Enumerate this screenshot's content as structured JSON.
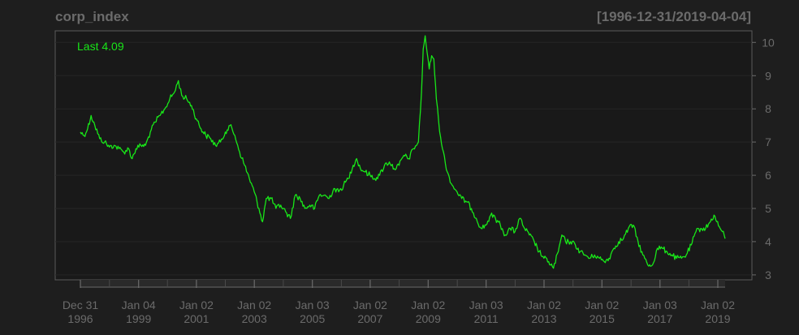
{
  "title": "corp_index",
  "date_range": "[1996-12-31/2019-04-04]",
  "last_label": "Last 4.09",
  "colors": {
    "background": "#1e1e1e",
    "panel": "#191919",
    "grid": "#262626",
    "axis": "#6b6b6b",
    "series": "#19e619"
  },
  "chart_data": {
    "type": "line",
    "title": "corp_index",
    "subtitle": "[1996-12-31/2019-04-04]",
    "xlabel": "",
    "ylabel": "",
    "xlim": [
      "1996-12-31",
      "2019-04-04"
    ],
    "ylim": [
      2.85,
      10.35
    ],
    "grid": true,
    "y_axis_side": "right",
    "y_ticks": [
      3,
      4,
      5,
      6,
      7,
      8,
      9,
      10
    ],
    "x_ticks": [
      {
        "date": "1996-12-31",
        "label": [
          "Dec 31",
          "1996"
        ]
      },
      {
        "date": "1999-01-04",
        "label": [
          "Jan 04",
          "1999"
        ]
      },
      {
        "date": "2001-01-02",
        "label": [
          "Jan 02",
          "2001"
        ]
      },
      {
        "date": "2003-01-02",
        "label": [
          "Jan 02",
          "2003"
        ]
      },
      {
        "date": "2005-01-03",
        "label": [
          "Jan 03",
          "2005"
        ]
      },
      {
        "date": "2007-01-02",
        "label": [
          "Jan 02",
          "2007"
        ]
      },
      {
        "date": "2009-01-02",
        "label": [
          "Jan 02",
          "2009"
        ]
      },
      {
        "date": "2011-01-03",
        "label": [
          "Jan 03",
          "2011"
        ]
      },
      {
        "date": "2013-01-02",
        "label": [
          "Jan 02",
          "2013"
        ]
      },
      {
        "date": "2015-01-02",
        "label": [
          "Jan 02",
          "2015"
        ]
      },
      {
        "date": "2017-01-03",
        "label": [
          "Jan 03",
          "2017"
        ]
      },
      {
        "date": "2019-01-02",
        "label": [
          "Jan 02",
          "2019"
        ]
      }
    ],
    "minor_ticks": [
      "1998-01-02",
      "2000-01-03",
      "2002-01-02",
      "2004-01-02",
      "2006-01-03",
      "2008-01-02",
      "2010-01-04",
      "2012-01-03",
      "2014-01-02",
      "2016-01-04",
      "2018-01-02"
    ],
    "series": [
      {
        "last": 4.09,
        "points": [
          [
            "1996-12-31",
            7.3
          ],
          [
            "1997-02-15",
            7.2
          ],
          [
            "1997-04-01",
            7.4
          ],
          [
            "1997-05-15",
            7.8
          ],
          [
            "1997-07-01",
            7.5
          ],
          [
            "1997-09-01",
            7.1
          ],
          [
            "1997-11-01",
            7.0
          ],
          [
            "1998-01-01",
            6.85
          ],
          [
            "1998-03-01",
            6.9
          ],
          [
            "1998-05-01",
            6.8
          ],
          [
            "1998-07-01",
            6.7
          ],
          [
            "1998-09-01",
            6.8
          ],
          [
            "1998-10-15",
            6.5
          ],
          [
            "1998-12-01",
            6.8
          ],
          [
            "1999-02-01",
            6.9
          ],
          [
            "1999-04-01",
            6.9
          ],
          [
            "1999-06-01",
            7.3
          ],
          [
            "1999-08-01",
            7.6
          ],
          [
            "1999-10-01",
            7.8
          ],
          [
            "1999-12-01",
            8.0
          ],
          [
            "2000-02-01",
            8.3
          ],
          [
            "2000-04-01",
            8.5
          ],
          [
            "2000-05-20",
            8.85
          ],
          [
            "2000-07-01",
            8.4
          ],
          [
            "2000-09-01",
            8.3
          ],
          [
            "2000-11-01",
            8.1
          ],
          [
            "2001-01-01",
            7.7
          ],
          [
            "2001-03-01",
            7.4
          ],
          [
            "2001-05-01",
            7.2
          ],
          [
            "2001-07-01",
            7.1
          ],
          [
            "2001-09-01",
            6.9
          ],
          [
            "2001-11-01",
            7.0
          ],
          [
            "2002-01-01",
            7.3
          ],
          [
            "2002-03-01",
            7.5
          ],
          [
            "2002-05-01",
            7.2
          ],
          [
            "2002-07-01",
            6.7
          ],
          [
            "2002-09-01",
            6.3
          ],
          [
            "2002-11-01",
            5.9
          ],
          [
            "2003-01-01",
            5.5
          ],
          [
            "2003-03-01",
            5.0
          ],
          [
            "2003-04-15",
            4.6
          ],
          [
            "2003-06-01",
            5.3
          ],
          [
            "2003-08-01",
            5.3
          ],
          [
            "2003-10-01",
            5.0
          ],
          [
            "2003-12-01",
            5.1
          ],
          [
            "2004-02-01",
            4.9
          ],
          [
            "2004-04-01",
            4.7
          ],
          [
            "2004-06-01",
            5.4
          ],
          [
            "2004-08-01",
            5.3
          ],
          [
            "2004-10-01",
            5.0
          ],
          [
            "2004-12-01",
            5.1
          ],
          [
            "2005-02-01",
            5.0
          ],
          [
            "2005-04-01",
            5.4
          ],
          [
            "2005-06-01",
            5.4
          ],
          [
            "2005-08-01",
            5.3
          ],
          [
            "2005-10-01",
            5.6
          ],
          [
            "2005-12-01",
            5.5
          ],
          [
            "2006-02-01",
            5.7
          ],
          [
            "2006-04-01",
            5.9
          ],
          [
            "2006-06-01",
            6.3
          ],
          [
            "2006-07-15",
            6.5
          ],
          [
            "2006-09-01",
            6.2
          ],
          [
            "2006-11-01",
            6.1
          ],
          [
            "2007-01-01",
            6.0
          ],
          [
            "2007-03-01",
            5.9
          ],
          [
            "2007-05-01",
            6.0
          ],
          [
            "2007-07-01",
            6.3
          ],
          [
            "2007-09-01",
            6.4
          ],
          [
            "2007-11-01",
            6.2
          ],
          [
            "2008-01-01",
            6.3
          ],
          [
            "2008-03-01",
            6.6
          ],
          [
            "2008-05-01",
            6.5
          ],
          [
            "2008-07-01",
            6.8
          ],
          [
            "2008-09-01",
            7.0
          ],
          [
            "2008-10-10",
            8.5
          ],
          [
            "2008-11-01",
            9.8
          ],
          [
            "2008-11-25",
            10.2
          ],
          [
            "2008-12-20",
            9.7
          ],
          [
            "2009-01-15",
            9.2
          ],
          [
            "2009-02-15",
            9.6
          ],
          [
            "2009-03-15",
            9.5
          ],
          [
            "2009-04-15",
            8.3
          ],
          [
            "2009-05-15",
            7.6
          ],
          [
            "2009-07-01",
            6.8
          ],
          [
            "2009-09-01",
            6.1
          ],
          [
            "2009-11-01",
            5.7
          ],
          [
            "2010-01-01",
            5.5
          ],
          [
            "2010-03-01",
            5.3
          ],
          [
            "2010-05-01",
            5.2
          ],
          [
            "2010-07-01",
            5.0
          ],
          [
            "2010-09-01",
            4.7
          ],
          [
            "2010-11-01",
            4.4
          ],
          [
            "2011-01-01",
            4.5
          ],
          [
            "2011-03-01",
            4.8
          ],
          [
            "2011-05-01",
            4.7
          ],
          [
            "2011-07-01",
            4.5
          ],
          [
            "2011-09-01",
            4.2
          ],
          [
            "2011-11-01",
            4.4
          ],
          [
            "2012-01-01",
            4.3
          ],
          [
            "2012-03-01",
            4.7
          ],
          [
            "2012-05-01",
            4.4
          ],
          [
            "2012-07-01",
            4.2
          ],
          [
            "2012-09-01",
            4.0
          ],
          [
            "2012-11-01",
            3.7
          ],
          [
            "2013-01-01",
            3.5
          ],
          [
            "2013-03-01",
            3.4
          ],
          [
            "2013-05-01",
            3.2
          ],
          [
            "2013-07-01",
            3.7
          ],
          [
            "2013-08-15",
            4.2
          ],
          [
            "2013-10-01",
            4.0
          ],
          [
            "2013-12-01",
            4.0
          ],
          [
            "2014-02-01",
            3.9
          ],
          [
            "2014-04-01",
            3.7
          ],
          [
            "2014-06-01",
            3.6
          ],
          [
            "2014-08-01",
            3.5
          ],
          [
            "2014-10-01",
            3.6
          ],
          [
            "2014-12-01",
            3.5
          ],
          [
            "2015-02-01",
            3.4
          ],
          [
            "2015-04-01",
            3.5
          ],
          [
            "2015-06-01",
            3.8
          ],
          [
            "2015-08-01",
            4.0
          ],
          [
            "2015-10-01",
            4.1
          ],
          [
            "2015-12-01",
            4.4
          ],
          [
            "2016-02-01",
            4.5
          ],
          [
            "2016-04-01",
            4.0
          ],
          [
            "2016-06-01",
            3.6
          ],
          [
            "2016-08-01",
            3.3
          ],
          [
            "2016-10-01",
            3.3
          ],
          [
            "2016-12-01",
            3.8
          ],
          [
            "2017-02-01",
            3.8
          ],
          [
            "2017-04-01",
            3.7
          ],
          [
            "2017-06-01",
            3.6
          ],
          [
            "2017-08-01",
            3.5
          ],
          [
            "2017-10-01",
            3.5
          ],
          [
            "2017-12-01",
            3.6
          ],
          [
            "2018-02-01",
            3.9
          ],
          [
            "2018-04-01",
            4.3
          ],
          [
            "2018-06-01",
            4.4
          ],
          [
            "2018-08-01",
            4.4
          ],
          [
            "2018-10-01",
            4.6
          ],
          [
            "2018-11-15",
            4.8
          ],
          [
            "2018-12-20",
            4.6
          ],
          [
            "2019-02-01",
            4.4
          ],
          [
            "2019-03-01",
            4.3
          ],
          [
            "2019-04-04",
            4.09
          ]
        ]
      }
    ]
  }
}
